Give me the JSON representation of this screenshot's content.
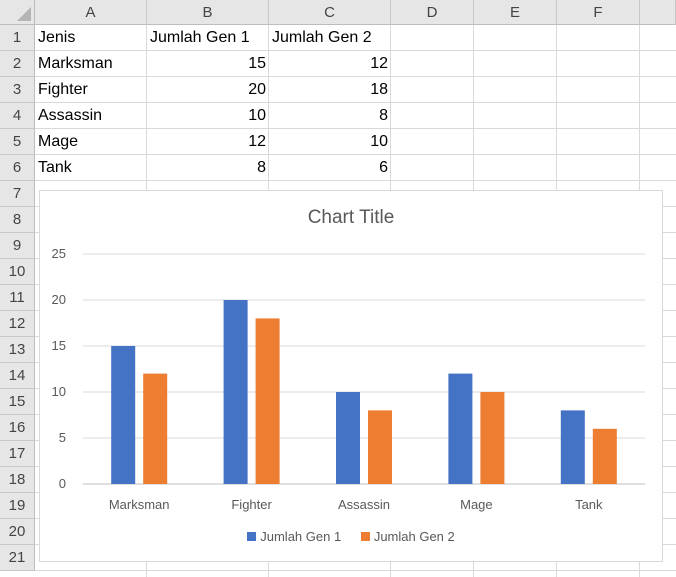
{
  "columns": [
    "A",
    "B",
    "C",
    "D",
    "E",
    "F"
  ],
  "rows": [
    "1",
    "2",
    "3",
    "4",
    "5",
    "6",
    "7",
    "8",
    "9",
    "10",
    "11",
    "12",
    "13",
    "14",
    "15",
    "16",
    "17",
    "18",
    "19",
    "20",
    "21"
  ],
  "table": {
    "header": [
      "Jenis",
      "Jumlah Gen 1",
      "Jumlah Gen 2"
    ],
    "rows": [
      [
        "Marksman",
        "15",
        "12"
      ],
      [
        "Fighter",
        "20",
        "18"
      ],
      [
        "Assassin",
        "10",
        "8"
      ],
      [
        "Mage",
        "12",
        "10"
      ],
      [
        "Tank",
        "8",
        "6"
      ]
    ]
  },
  "colors": {
    "series1": "#4472c4",
    "series2": "#ed7d31",
    "gridline": "#d9d9d9",
    "axis_text": "#595959"
  },
  "chart_data": {
    "type": "bar",
    "title": "Chart Title",
    "categories": [
      "Marksman",
      "Fighter",
      "Assassin",
      "Mage",
      "Tank"
    ],
    "series": [
      {
        "name": "Jumlah Gen 1",
        "values": [
          15,
          20,
          10,
          12,
          8
        ]
      },
      {
        "name": "Jumlah Gen 2",
        "values": [
          12,
          18,
          8,
          10,
          6
        ]
      }
    ],
    "ylim": [
      0,
      25
    ],
    "yticks": [
      "0",
      "5",
      "10",
      "15",
      "20",
      "25"
    ],
    "grid": true,
    "legend": "bottom"
  }
}
